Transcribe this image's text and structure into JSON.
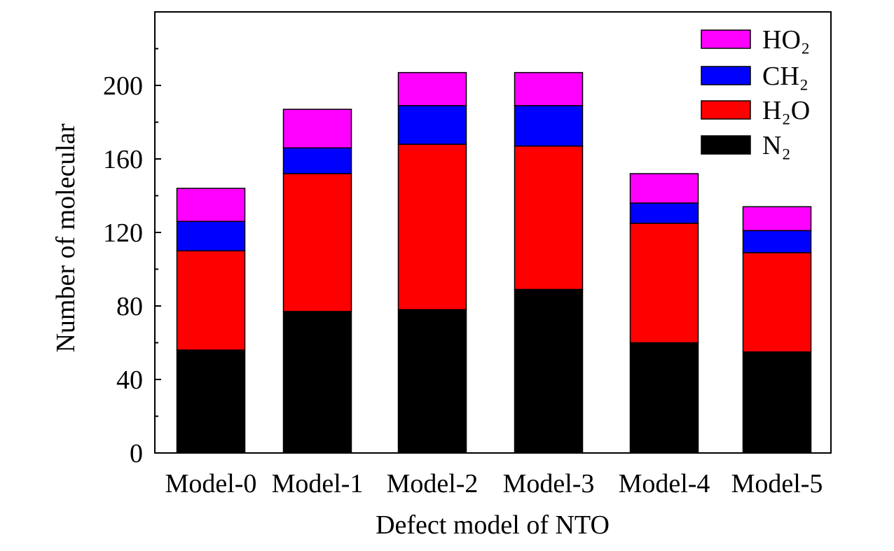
{
  "chart_data": {
    "type": "bar",
    "stacked": true,
    "title": "",
    "xlabel": "Defect model of NTO",
    "ylabel": "Number of molecular",
    "ylim": [
      0,
      240
    ],
    "yticks": [
      0,
      40,
      80,
      120,
      160,
      200
    ],
    "categories": [
      "Model-0",
      "Model-1",
      "Model-2",
      "Model-3",
      "Model-4",
      "Model-5"
    ],
    "series": [
      {
        "name": "N₂",
        "color": "#000000",
        "values": [
          56,
          77,
          78,
          89,
          60,
          55
        ]
      },
      {
        "name": "H₂O",
        "color": "#ff0000",
        "values": [
          54,
          75,
          90,
          78,
          65,
          54
        ]
      },
      {
        "name": "CH₂",
        "color": "#0000ff",
        "values": [
          16,
          14,
          21,
          22,
          11,
          12
        ]
      },
      {
        "name": "HO₂",
        "color": "#ff00ff",
        "values": [
          18,
          21,
          18,
          18,
          16,
          13
        ]
      }
    ],
    "legend": {
      "placement": "top-right",
      "order": [
        "HO₂",
        "CH₂",
        "H₂O",
        "N₂"
      ]
    },
    "grid": false
  }
}
